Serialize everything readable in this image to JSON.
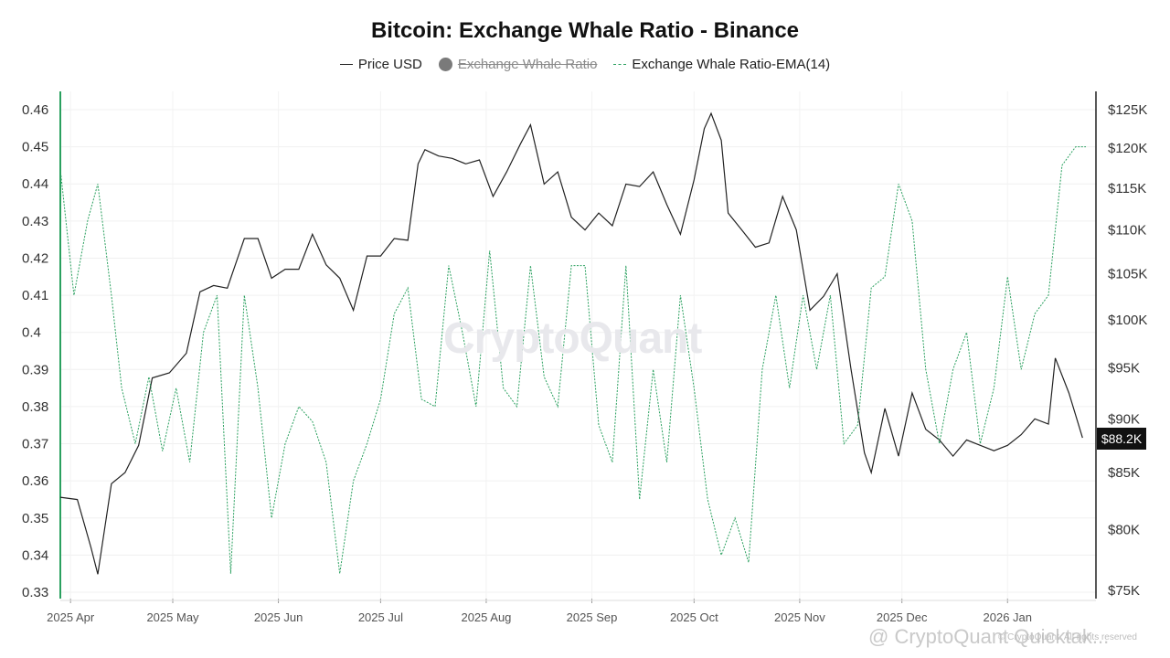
{
  "header": {
    "title": "Bitcoin: Exchange Whale Ratio - Binance"
  },
  "legend": [
    {
      "label": "Price USD",
      "style": "line",
      "color": "#222222",
      "hidden": false
    },
    {
      "label": "Exchange Whale Ratio",
      "style": "dot",
      "color": "#7a7a7a",
      "hidden": true
    },
    {
      "label": "Exchange Whale Ratio-EMA(14)",
      "style": "dashed",
      "color": "#2aa05f",
      "hidden": false
    }
  ],
  "watermark": "CryptoQuant",
  "footer": {
    "brand": "@ CryptoQuant Quicktak...",
    "note": "© CryptoQuant. All rights reserved"
  },
  "price_badge": "$88.2K",
  "chart_data": {
    "type": "line",
    "title": "Bitcoin: Exchange Whale Ratio - Binance",
    "x_tick_labels": [
      "2025 Apr",
      "2025 May",
      "2025 Jun",
      "2025 Jul",
      "2025 Aug",
      "2025 Sep",
      "2025 Oct",
      "2025 Nov",
      "2025 Dec",
      "2026 Jan"
    ],
    "x_range": [
      "2025-03-29",
      "2026-01-24"
    ],
    "y_left": {
      "ticks": [
        0.33,
        0.34,
        0.35,
        0.36,
        0.37,
        0.38,
        0.39,
        0.4,
        0.41,
        0.42,
        0.43,
        0.44,
        0.45,
        0.46
      ],
      "tick_labels": [
        "0.33",
        "0.34",
        "0.35",
        "0.36",
        "0.37",
        "0.38",
        "0.39",
        "0.4",
        "0.41",
        "0.42",
        "0.43",
        "0.44",
        "0.45",
        "0.46"
      ],
      "range": [
        0.33,
        0.465
      ]
    },
    "y_right": {
      "ticks": [
        75000,
        80000,
        85000,
        90000,
        95000,
        100000,
        105000,
        110000,
        115000,
        120000,
        125000
      ],
      "tick_labels": [
        "$75K",
        "$80K",
        "$85K",
        "$90K",
        "$95K",
        "$100K",
        "$105K",
        "$110K",
        "$115K",
        "$120K",
        "$125K"
      ],
      "range": [
        75000,
        125000
      ],
      "scale": "log"
    },
    "grid": true,
    "series": [
      {
        "name": "Price USD",
        "axis": "right",
        "color": "#222222",
        "dates": [
          "2025-03-29",
          "2025-04-03",
          "2025-04-07",
          "2025-04-09",
          "2025-04-13",
          "2025-04-17",
          "2025-04-21",
          "2025-04-25",
          "2025-04-30",
          "2025-05-05",
          "2025-05-09",
          "2025-05-13",
          "2025-05-17",
          "2025-05-22",
          "2025-05-26",
          "2025-05-30",
          "2025-06-03",
          "2025-06-07",
          "2025-06-11",
          "2025-06-15",
          "2025-06-19",
          "2025-06-23",
          "2025-06-27",
          "2025-07-01",
          "2025-07-05",
          "2025-07-09",
          "2025-07-12",
          "2025-07-14",
          "2025-07-18",
          "2025-07-22",
          "2025-07-26",
          "2025-07-30",
          "2025-08-03",
          "2025-08-07",
          "2025-08-11",
          "2025-08-14",
          "2025-08-18",
          "2025-08-22",
          "2025-08-26",
          "2025-08-30",
          "2025-09-03",
          "2025-09-07",
          "2025-09-11",
          "2025-09-15",
          "2025-09-19",
          "2025-09-23",
          "2025-09-27",
          "2025-10-01",
          "2025-10-04",
          "2025-10-06",
          "2025-10-09",
          "2025-10-11",
          "2025-10-15",
          "2025-10-19",
          "2025-10-23",
          "2025-10-27",
          "2025-10-31",
          "2025-11-04",
          "2025-11-08",
          "2025-11-12",
          "2025-11-16",
          "2025-11-20",
          "2025-11-22",
          "2025-11-26",
          "2025-11-30",
          "2025-12-04",
          "2025-12-08",
          "2025-12-12",
          "2025-12-16",
          "2025-12-20",
          "2025-12-24",
          "2025-12-28",
          "2026-01-01",
          "2026-01-05",
          "2026-01-09",
          "2026-01-13",
          "2026-01-15",
          "2026-01-19",
          "2026-01-23"
        ],
        "values": [
          82800,
          82600,
          78500,
          76300,
          84000,
          85000,
          87500,
          94000,
          94500,
          96500,
          103000,
          103700,
          103400,
          109000,
          109000,
          104500,
          105500,
          105500,
          109500,
          106000,
          104500,
          101000,
          107000,
          107000,
          109000,
          108800,
          118000,
          119800,
          119000,
          118700,
          118000,
          118500,
          114000,
          117000,
          120500,
          123000,
          115500,
          117000,
          111500,
          110000,
          112000,
          110500,
          115500,
          115200,
          117000,
          113000,
          109500,
          116000,
          122500,
          124500,
          121000,
          112000,
          110000,
          108000,
          108500,
          114000,
          110000,
          101000,
          102500,
          105000,
          95000,
          86800,
          85000,
          91000,
          86500,
          92500,
          89000,
          88000,
          86500,
          88000,
          87500,
          87000,
          87500,
          88500,
          90000,
          89500,
          96000,
          92500,
          88200
        ]
      },
      {
        "name": "Exchange Whale Ratio-EMA(14)",
        "axis": "left",
        "color": "#2aa05f",
        "dates": [
          "2025-03-29",
          "2025-04-02",
          "2025-04-06",
          "2025-04-09",
          "2025-04-13",
          "2025-04-16",
          "2025-04-20",
          "2025-04-24",
          "2025-04-28",
          "2025-05-02",
          "2025-05-06",
          "2025-05-10",
          "2025-05-14",
          "2025-05-18",
          "2025-05-22",
          "2025-05-26",
          "2025-05-30",
          "2025-06-03",
          "2025-06-07",
          "2025-06-11",
          "2025-06-15",
          "2025-06-19",
          "2025-06-23",
          "2025-06-27",
          "2025-07-01",
          "2025-07-05",
          "2025-07-09",
          "2025-07-13",
          "2025-07-17",
          "2025-07-21",
          "2025-07-25",
          "2025-07-29",
          "2025-08-02",
          "2025-08-06",
          "2025-08-10",
          "2025-08-14",
          "2025-08-18",
          "2025-08-22",
          "2025-08-26",
          "2025-08-30",
          "2025-09-03",
          "2025-09-07",
          "2025-09-11",
          "2025-09-15",
          "2025-09-19",
          "2025-09-23",
          "2025-09-27",
          "2025-10-01",
          "2025-10-05",
          "2025-10-09",
          "2025-10-13",
          "2025-10-17",
          "2025-10-21",
          "2025-10-25",
          "2025-10-29",
          "2025-11-02",
          "2025-11-06",
          "2025-11-10",
          "2025-11-14",
          "2025-11-18",
          "2025-11-22",
          "2025-11-26",
          "2025-11-30",
          "2025-12-04",
          "2025-12-08",
          "2025-12-12",
          "2025-12-16",
          "2025-12-20",
          "2025-12-24",
          "2025-12-28",
          "2026-01-01",
          "2026-01-05",
          "2026-01-09",
          "2026-01-13",
          "2026-01-17",
          "2026-01-21",
          "2026-01-24"
        ],
        "values": [
          0.444,
          0.41,
          0.43,
          0.44,
          0.41,
          0.385,
          0.37,
          0.388,
          0.368,
          0.385,
          0.365,
          0.4,
          0.41,
          0.335,
          0.41,
          0.385,
          0.35,
          0.37,
          0.38,
          0.376,
          0.365,
          0.335,
          0.36,
          0.37,
          0.382,
          0.405,
          0.412,
          0.382,
          0.38,
          0.418,
          0.4,
          0.38,
          0.422,
          0.385,
          0.38,
          0.418,
          0.388,
          0.38,
          0.418,
          0.418,
          0.375,
          0.365,
          0.418,
          0.355,
          0.39,
          0.365,
          0.41,
          0.385,
          0.355,
          0.34,
          0.35,
          0.338,
          0.39,
          0.41,
          0.385,
          0.41,
          0.39,
          0.41,
          0.37,
          0.375,
          0.412,
          0.415,
          0.44,
          0.43,
          0.39,
          0.37,
          0.39,
          0.4,
          0.37,
          0.385,
          0.415,
          0.39,
          0.405,
          0.41,
          0.445,
          0.45,
          0.45
        ]
      }
    ]
  }
}
